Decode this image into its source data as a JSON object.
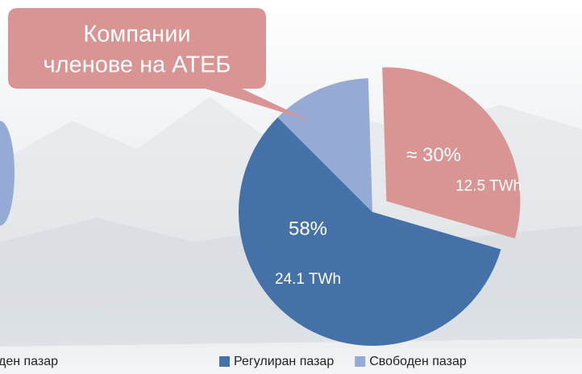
{
  "chart_data": {
    "type": "pie",
    "categories": [
      "Регулиран пазар",
      null,
      "Свободен пазар"
    ],
    "values": [
      58,
      30,
      12
    ],
    "value_labels": [
      "58%",
      "≈ 30%",
      null
    ],
    "energy_labels": [
      "24.1 TWh",
      "12.5 TWh",
      null
    ],
    "colors": [
      "#4472a8",
      "#d99593",
      "#95aad4"
    ],
    "exploded": [
      false,
      true,
      false
    ],
    "callout": [
      "Компании",
      "членове на АТЕБ"
    ],
    "clipped_legend_text": "ден пазар"
  }
}
